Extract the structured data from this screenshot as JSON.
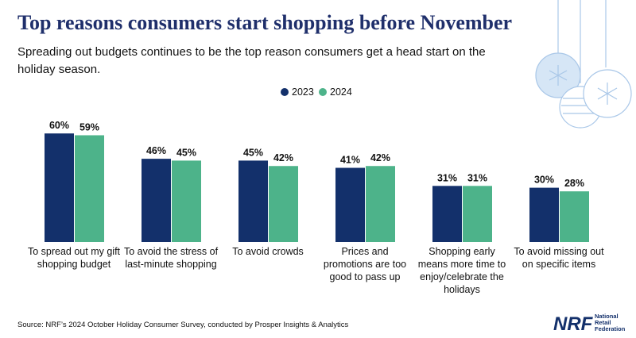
{
  "chart_data": {
    "type": "bar",
    "title": "Top reasons consumers start shopping before November",
    "subtitle": "Spreading out budgets continues to be the top reason consumers get a head start on the holiday season.",
    "categories": [
      "To spread out my gift shopping budget",
      "To avoid the stress of last-minute shopping",
      "To avoid crowds",
      "Prices and promotions are too good to pass up",
      "Shopping early means more time to enjoy/celebrate the holidays",
      "To avoid missing out on specific items"
    ],
    "series": [
      {
        "name": "2023",
        "color": "#13306b",
        "values": [
          60,
          46,
          45,
          41,
          31,
          30
        ],
        "value_labels": [
          "60%",
          "46%",
          "45%",
          "41%",
          "31%",
          "30%"
        ]
      },
      {
        "name": "2024",
        "color": "#4db38a",
        "values": [
          59,
          45,
          42,
          42,
          31,
          28
        ],
        "value_labels": [
          "59%",
          "45%",
          "42%",
          "42%",
          "31%",
          "28%"
        ]
      }
    ],
    "source": "Source: NRF’s 2024 October Holiday Consumer Survey, conducted by Prosper Insights & Analytics",
    "logo": "NRF",
    "logo_text": "National Retail Federation"
  }
}
